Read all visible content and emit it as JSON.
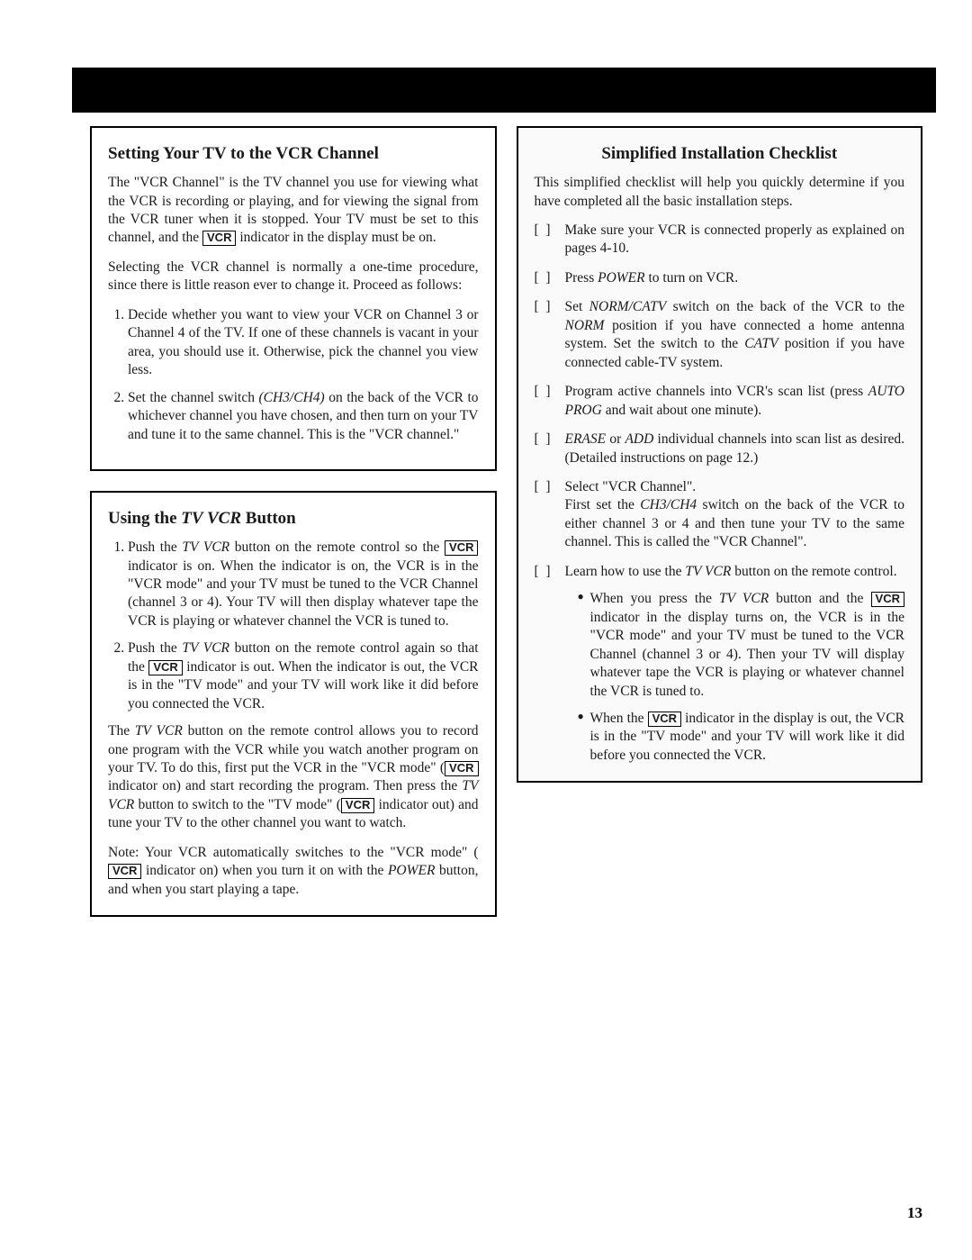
{
  "page_number": "13",
  "vcr_indicator_label": "VCR",
  "left": {
    "box1": {
      "title": "Setting Your TV to the VCR Channel",
      "p1a": "The \"VCR Channel\" is the TV channel you use for viewing what the VCR is recording or playing, and for viewing the signal from the VCR tuner when it is stopped. Your TV must be set to this channel, and the ",
      "p1b": " indicator in the display must be on.",
      "p2": "Selecting the VCR channel is normally a one-time procedure, since there is little reason ever to change it. Proceed as follows:",
      "li1": "Decide whether you want to view your VCR on Channel 3 or Channel 4 of the TV. If one of these channels is vacant in your area, you should use it. Otherwise, pick the channel you view less.",
      "li2a": "Set the channel switch ",
      "li2_switch": "(CH3/CH4)",
      "li2b": " on the back of the VCR to whichever channel you have chosen, and then turn on your TV and tune it to the same channel. This is the \"VCR channel.\""
    },
    "box2": {
      "title_a": "Using the ",
      "title_btn": "TV VCR",
      "title_b": " Button",
      "li1a": "Push the ",
      "li1_btn": "TV VCR",
      "li1b": " button on the remote control so the ",
      "li1c": " indicator is on. When the indicator is on, the VCR is in the \"VCR mode\" and your TV must be tuned to the VCR Channel (channel 3 or 4). Your TV will then display whatever tape the VCR is playing or whatever channel the VCR is tuned to.",
      "li2a": "Push the ",
      "li2_btn": "TV VCR",
      "li2b": " button on the remote control again so that the ",
      "li2c": " indicator is out. When the indicator is out, the VCR is in the \"TV mode\" and your TV will work like it did before you connected the VCR.",
      "p3a": "The ",
      "p3_btn": "TV VCR",
      "p3b": " button on the remote control allows you to record one program with the VCR while you watch another program on your TV. To do this, first put the VCR in the \"VCR mode\" (",
      "p3c": " indicator on) and start recording the program. Then press the ",
      "p3_btn2": "TV VCR",
      "p3d": " button to switch to the \"TV mode\" (",
      "p3e": " indicator out) and tune your TV to the other channel you want to watch.",
      "p4a": "Note: Your VCR automatically switches to the \"VCR mode\" (",
      "p4b": " indicator on) when you turn it on with the ",
      "p4_pwr": "POWER",
      "p4c": " button, and when you start playing a tape."
    }
  },
  "right": {
    "title": "Simplified Installation Checklist",
    "intro": "This simplified checklist will help you quickly determine if you have completed all the basic installation steps.",
    "c1": "Make sure your VCR is connected properly as explained on pages 4-10.",
    "c2a": "Press ",
    "c2_pwr": "POWER",
    "c2b": " to turn on VCR.",
    "c3a": "Set ",
    "c3_sw": "NORM/CATV",
    "c3b": " switch on the back of the VCR to the ",
    "c3_norm": "NORM",
    "c3c": " position if you have connected a home antenna system. Set the switch to the ",
    "c3_catv": "CATV",
    "c3d": " position if you have connected cable-TV system.",
    "c4a": "Program active channels into VCR's scan list (press ",
    "c4_auto": "AUTO PROG",
    "c4b": " and wait about one minute).",
    "c5_erase": "ERASE",
    "c5_or": " or ",
    "c5_add": "ADD",
    "c5b": " individual channels into scan list as desired. (Detailed instructions on page 12.)",
    "c6a": "Select \"VCR Channel\".",
    "c6b": "First set the ",
    "c6_sw": "CH3/CH4",
    "c6c": " switch on the back of the VCR to either channel 3 or 4 and then tune your TV to the same channel. This is called the \"VCR Channel\".",
    "c7a": "Learn how to use the ",
    "c7_btn": "TV VCR",
    "c7b": " button on the remote control.",
    "b1a": "When you press the ",
    "b1_btn": "TV VCR",
    "b1b": " button and the ",
    "b1c": " indicator in the display turns on, the VCR is in the \"VCR mode\" and your TV must be tuned to the VCR Channel (channel 3 or 4). Then your TV will display whatever tape the VCR is playing or whatever channel the VCR is tuned to.",
    "b2a": "When the ",
    "b2b": " indicator in the display is out, the VCR is in the \"TV mode\" and your TV will work like it did before you connected the VCR."
  }
}
